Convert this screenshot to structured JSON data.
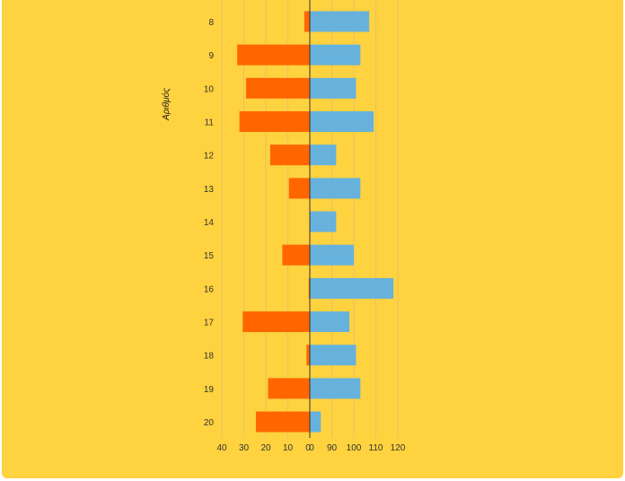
{
  "background_color": "#FFD23F",
  "chart_data": {
    "type": "bar",
    "orientation": "horizontal",
    "layout": "diverging",
    "ylabel": "Αριθμός",
    "categories": [
      "8",
      "9",
      "10",
      "11",
      "12",
      "13",
      "14",
      "15",
      "16",
      "17",
      "18",
      "19",
      "20"
    ],
    "series": [
      {
        "color": "#FF6600",
        "side": "left",
        "values": [
          2.5,
          33,
          29,
          32,
          18,
          9.5,
          0,
          12.5,
          0.5,
          30.5,
          1.5,
          19,
          24.5
        ]
      },
      {
        "color": "#66B2DC",
        "side": "right",
        "values": [
          107,
          103,
          101,
          109,
          92,
          103,
          92,
          100,
          118,
          98,
          101,
          103,
          85
        ]
      }
    ],
    "x_left": {
      "ticks": [
        "40",
        "30",
        "20",
        "10",
        "0"
      ],
      "range": [
        0,
        40
      ]
    },
    "x_right": {
      "ticks": [
        "0",
        "90",
        "100",
        "110",
        "120"
      ],
      "range": [
        80,
        120
      ]
    },
    "grid": true,
    "axis_color": "#333333",
    "grid_color": "#E5C16A"
  }
}
